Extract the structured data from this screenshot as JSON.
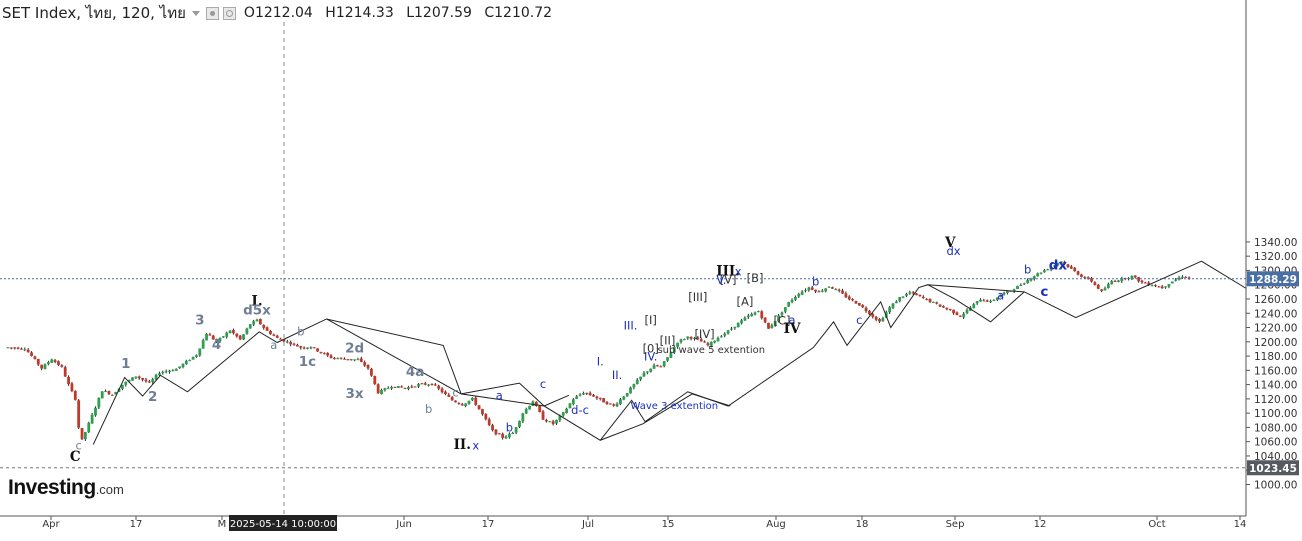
{
  "header": {
    "instrument": "SET Index, ไทย, 120, ไทย",
    "o_label": "O",
    "o_value": "1212.04",
    "h_label": "H",
    "h_value": "1214.33",
    "l_label": "L",
    "l_value": "1207.59",
    "c_label": "C",
    "c_value": "1210.72"
  },
  "logo": {
    "main": "Investing",
    "suffix": ".com"
  },
  "icons": {
    "settings": "gear-icon",
    "visibility": "eye-icon",
    "dropdown": "caret-down-icon"
  },
  "colors": {
    "up": "#2e9e4f",
    "down": "#c0392b",
    "wave_dark": "#111111",
    "wave_slate": "#6e7f95",
    "wave_blue": "#1c2fc0",
    "price_line": "#4a6fa5"
  },
  "chart_data": {
    "type": "candlestick",
    "title": "",
    "price_axis": {
      "min": 990,
      "max": 1340,
      "ticks": [
        1000,
        1020,
        1040,
        1060,
        1080,
        1100,
        1120,
        1140,
        1160,
        1180,
        1200,
        1220,
        1240,
        1260,
        1280,
        1300,
        1320,
        1340
      ],
      "tick_labels": [
        "1000.00",
        "1020.00",
        "1040.00",
        "1060.00",
        "1080.00",
        "1100.00",
        "1120.00",
        "1140.00",
        "1160.00",
        "1180.00",
        "1200.00",
        "1220.00",
        "1240.00",
        "1260.00",
        "1280.00",
        "1300.00",
        "1320.00",
        "1340.00"
      ],
      "position": "right"
    },
    "time_axis": {
      "labels": [
        "Apr",
        "17",
        "M",
        "Jun",
        "17",
        "Jul",
        "15",
        "Aug",
        "18",
        "Sep",
        "12",
        "Oct",
        "14"
      ],
      "crosshair_label": "2025-05-14 10:00:00"
    },
    "current_price": {
      "value": 1288.29,
      "label": "1288.29"
    },
    "horizontal_level": {
      "value": 1023.45,
      "label": "1023.45"
    },
    "grid": false,
    "price_path": [
      {
        "t": 0,
        "p": 1192
      },
      {
        "t": 2.5,
        "p": 1191
      },
      {
        "t": 3.5,
        "p": 1180
      },
      {
        "t": 5,
        "p": 1163
      },
      {
        "t": 6.5,
        "p": 1176
      },
      {
        "t": 8,
        "p": 1164
      },
      {
        "t": 9,
        "p": 1140
      },
      {
        "t": 10,
        "p": 1120
      },
      {
        "t": 10.5,
        "p": 1080
      },
      {
        "t": 11,
        "p": 1062
      },
      {
        "t": 12.5,
        "p": 1097
      },
      {
        "t": 14,
        "p": 1132
      },
      {
        "t": 15.5,
        "p": 1126
      },
      {
        "t": 17,
        "p": 1140
      },
      {
        "t": 19,
        "p": 1152
      },
      {
        "t": 21,
        "p": 1142
      },
      {
        "t": 22.5,
        "p": 1157
      },
      {
        "t": 25,
        "p": 1162
      },
      {
        "t": 28,
        "p": 1182
      },
      {
        "t": 29.5,
        "p": 1212
      },
      {
        "t": 31,
        "p": 1200
      },
      {
        "t": 33,
        "p": 1216
      },
      {
        "t": 34.5,
        "p": 1203
      },
      {
        "t": 36,
        "p": 1225
      },
      {
        "t": 37,
        "p": 1230
      },
      {
        "t": 38.5,
        "p": 1215
      },
      {
        "t": 40,
        "p": 1205
      },
      {
        "t": 42,
        "p": 1198
      },
      {
        "t": 43.5,
        "p": 1192
      },
      {
        "t": 45,
        "p": 1193
      },
      {
        "t": 46.5,
        "p": 1185
      },
      {
        "t": 48,
        "p": 1178
      },
      {
        "t": 50,
        "p": 1176
      },
      {
        "t": 52,
        "p": 1175
      },
      {
        "t": 53.5,
        "p": 1163
      },
      {
        "t": 55,
        "p": 1129
      },
      {
        "t": 57,
        "p": 1138
      },
      {
        "t": 59,
        "p": 1135
      },
      {
        "t": 61,
        "p": 1140
      },
      {
        "t": 63,
        "p": 1141
      },
      {
        "t": 64.5,
        "p": 1130
      },
      {
        "t": 66,
        "p": 1118
      },
      {
        "t": 67.5,
        "p": 1112
      },
      {
        "t": 69,
        "p": 1120
      },
      {
        "t": 70.5,
        "p": 1098
      },
      {
        "t": 72,
        "p": 1075
      },
      {
        "t": 73.5,
        "p": 1066
      },
      {
        "t": 75,
        "p": 1072
      },
      {
        "t": 76.5,
        "p": 1100
      },
      {
        "t": 78,
        "p": 1117
      },
      {
        "t": 79.5,
        "p": 1092
      },
      {
        "t": 81,
        "p": 1085
      },
      {
        "t": 82.5,
        "p": 1100
      },
      {
        "t": 84,
        "p": 1120
      },
      {
        "t": 85.5,
        "p": 1129
      },
      {
        "t": 87,
        "p": 1124
      },
      {
        "t": 88.5,
        "p": 1116
      },
      {
        "t": 90,
        "p": 1110
      },
      {
        "t": 91.5,
        "p": 1124
      },
      {
        "t": 93,
        "p": 1140
      },
      {
        "t": 94.5,
        "p": 1156
      },
      {
        "t": 96,
        "p": 1166
      },
      {
        "t": 97,
        "p": 1165
      },
      {
        "t": 98,
        "p": 1178
      },
      {
        "t": 99.5,
        "p": 1200
      },
      {
        "t": 101,
        "p": 1207
      },
      {
        "t": 102.5,
        "p": 1203
      },
      {
        "t": 104,
        "p": 1195
      },
      {
        "t": 105.5,
        "p": 1206
      },
      {
        "t": 107,
        "p": 1215
      },
      {
        "t": 108.5,
        "p": 1226
      },
      {
        "t": 110,
        "p": 1236
      },
      {
        "t": 111.5,
        "p": 1243
      },
      {
        "t": 113,
        "p": 1218
      },
      {
        "t": 114.5,
        "p": 1236
      },
      {
        "t": 116,
        "p": 1255
      },
      {
        "t": 117.5,
        "p": 1268
      },
      {
        "t": 119,
        "p": 1276
      },
      {
        "t": 120.5,
        "p": 1270
      },
      {
        "t": 122,
        "p": 1278
      },
      {
        "t": 123.5,
        "p": 1270
      },
      {
        "t": 125,
        "p": 1260
      },
      {
        "t": 126.5,
        "p": 1252
      },
      {
        "t": 128,
        "p": 1240
      },
      {
        "t": 129.5,
        "p": 1228
      },
      {
        "t": 131,
        "p": 1248
      },
      {
        "t": 132.5,
        "p": 1262
      },
      {
        "t": 134,
        "p": 1269
      },
      {
        "t": 135.5,
        "p": 1263
      },
      {
        "t": 137,
        "p": 1257
      },
      {
        "t": 138.5,
        "p": 1250
      },
      {
        "t": 140,
        "p": 1244
      },
      {
        "t": 141.5,
        "p": 1236
      },
      {
        "t": 143,
        "p": 1248
      },
      {
        "t": 144.5,
        "p": 1260
      },
      {
        "t": 146,
        "p": 1256
      },
      {
        "t": 147.5,
        "p": 1266
      },
      {
        "t": 149,
        "p": 1272
      },
      {
        "t": 150.5,
        "p": 1280
      },
      {
        "t": 152,
        "p": 1290
      },
      {
        "t": 153.5,
        "p": 1298
      },
      {
        "t": 155,
        "p": 1305
      },
      {
        "t": 156.5,
        "p": 1313
      },
      {
        "t": 158,
        "p": 1302
      },
      {
        "t": 159.5,
        "p": 1292
      },
      {
        "t": 161,
        "p": 1285
      },
      {
        "t": 162.5,
        "p": 1270
      },
      {
        "t": 164,
        "p": 1285
      },
      {
        "t": 165.5,
        "p": 1288
      },
      {
        "t": 167,
        "p": 1292
      },
      {
        "t": 168.5,
        "p": 1283
      },
      {
        "t": 170,
        "p": 1280
      },
      {
        "t": 171.5,
        "p": 1276
      },
      {
        "t": 173,
        "p": 1285
      },
      {
        "t": 174.5,
        "p": 1292
      },
      {
        "t": 175.5,
        "p": 1289
      }
    ],
    "wave_lines": [
      {
        "color": "#222222",
        "points": [
          [
            1076,
            1056
          ],
          [
            1104,
            1150
          ],
          [
            1120,
            1124
          ],
          [
            1136,
            1153
          ],
          [
            1160,
            1130
          ],
          [
            1224,
            1214
          ],
          [
            1240,
            1199
          ],
          [
            1284,
            1232
          ],
          [
            1388,
            1195
          ],
          [
            1404,
            1127
          ],
          [
            1478,
            1110
          ],
          [
            1528,
            1062
          ],
          [
            1566,
            1085
          ],
          [
            1610,
            1127
          ],
          [
            1644,
            1110
          ]
        ]
      },
      {
        "color": "#222222",
        "points": [
          [
            1284,
            1232
          ],
          [
            1404,
            1127
          ]
        ]
      },
      {
        "color": "#222222",
        "points": [
          [
            1404,
            1127
          ],
          [
            1456,
            1142
          ],
          [
            1478,
            1110
          ],
          [
            1500,
            1125
          ]
        ]
      },
      {
        "color": "#222222",
        "points": [
          [
            1528,
            1062
          ],
          [
            1556,
            1118
          ],
          [
            1568,
            1088
          ],
          [
            1606,
            1130
          ],
          [
            1642,
            1110
          ],
          [
            1718,
            1192
          ],
          [
            1736,
            1228
          ],
          [
            1748,
            1195
          ],
          [
            1778,
            1256
          ],
          [
            1787,
            1220
          ],
          [
            1812,
            1276
          ],
          [
            1820,
            1280
          ],
          [
            1844,
            1260
          ],
          [
            1876,
            1228
          ],
          [
            1906,
            1270
          ],
          [
            1952,
            1234
          ],
          [
            2064,
            1313
          ]
        ]
      },
      {
        "color": "#222222",
        "points": [
          [
            1820,
            1280
          ],
          [
            1906,
            1270
          ]
        ]
      },
      {
        "color": "#222222",
        "points": [
          [
            2064,
            1313
          ],
          [
            2112,
            1267
          ]
        ]
      },
      {
        "color": "#4aa3c7",
        "points": [
          [
            2112,
            1267
          ],
          [
            2138,
            1289
          ],
          [
            2158,
            1280
          ],
          [
            2174,
            1290
          ]
        ]
      }
    ],
    "annotations": [
      {
        "text": "I.",
        "t": 37,
        "p": 1251,
        "color": "#111111",
        "bold": true
      },
      {
        "text": "d5x",
        "t": 37,
        "p": 1238,
        "color": "#6e7f95",
        "bold": true
      },
      {
        "text": "3",
        "t": 28.5,
        "p": 1224,
        "color": "#6e7f95",
        "bold": true
      },
      {
        "text": "4",
        "t": 31,
        "p": 1190,
        "color": "#6e7f95",
        "bold": true
      },
      {
        "text": "1",
        "t": 17.5,
        "p": 1163,
        "color": "#6e7f95",
        "bold": true
      },
      {
        "text": "2",
        "t": 21.5,
        "p": 1117,
        "color": "#6e7f95",
        "bold": true
      },
      {
        "text": "c",
        "t": 10.5,
        "p": 1049,
        "color": "#6e7f95",
        "bold": false
      },
      {
        "text": "C",
        "t": 10,
        "p": 1033,
        "color": "#111111",
        "bold": true
      },
      {
        "text": "b",
        "t": 43.5,
        "p": 1209,
        "color": "#6e7f95",
        "bold": false
      },
      {
        "text": "a",
        "t": 39.5,
        "p": 1190,
        "color": "#6e7f95",
        "bold": false
      },
      {
        "text": "2d",
        "t": 51.5,
        "p": 1185,
        "color": "#6e7f95",
        "bold": true
      },
      {
        "text": "1c",
        "t": 44.5,
        "p": 1166,
        "color": "#6e7f95",
        "bold": true
      },
      {
        "text": "3x",
        "t": 51.5,
        "p": 1121,
        "color": "#6e7f95",
        "bold": true
      },
      {
        "text": "4a",
        "t": 60.5,
        "p": 1152,
        "color": "#6e7f95",
        "bold": true
      },
      {
        "text": "c",
        "t": 66.5,
        "p": 1123,
        "color": "#6e7f95",
        "bold": false
      },
      {
        "text": "b",
        "t": 62.5,
        "p": 1100,
        "color": "#6e7f95",
        "bold": false
      },
      {
        "text": "II.",
        "t": 67.5,
        "p": 1050,
        "color": "#111111",
        "bold": true
      },
      {
        "text": "x",
        "t": 69.5,
        "p": 1049,
        "color": "#1c2fc0",
        "bold": false
      },
      {
        "text": "a",
        "t": 73,
        "p": 1119,
        "color": "#1c2fc0",
        "bold": false
      },
      {
        "text": "b",
        "t": 74.5,
        "p": 1074,
        "color": "#1c2fc0",
        "bold": false
      },
      {
        "text": "c",
        "t": 79.5,
        "p": 1135,
        "color": "#1c2fc0",
        "bold": false
      },
      {
        "text": "d-c",
        "t": 85,
        "p": 1099,
        "color": "#1c2fc0",
        "bold": false
      },
      {
        "text": "Wave 3 extention",
        "t": 92.5,
        "p": 1106,
        "color": "#1c2fc0",
        "bold": false,
        "anchor": "start"
      },
      {
        "text": "I.",
        "t": 88,
        "p": 1167,
        "color": "#1c2fc0",
        "bold": false
      },
      {
        "text": "II.",
        "t": 90.5,
        "p": 1148,
        "color": "#1c2fc0",
        "bold": false
      },
      {
        "text": "III.",
        "t": 92.5,
        "p": 1217,
        "color": "#1c2fc0",
        "bold": false
      },
      {
        "text": "IV.",
        "t": 95.5,
        "p": 1174,
        "color": "#1c2fc0",
        "bold": false
      },
      {
        "text": "[I]",
        "t": 95.5,
        "p": 1225,
        "color": "#333333",
        "bold": false
      },
      {
        "text": "[II]",
        "t": 98,
        "p": 1196,
        "color": "#333333",
        "bold": false
      },
      {
        "text": "[0]",
        "t": 95.5,
        "p": 1185,
        "color": "#333333",
        "bold": false
      },
      {
        "text": "sub wave 5 extention",
        "t": 96.5,
        "p": 1184,
        "color": "#333333",
        "bold": false,
        "anchor": "start"
      },
      {
        "text": "[III]",
        "t": 102.5,
        "p": 1257,
        "color": "#333333",
        "bold": false
      },
      {
        "text": "[IV]",
        "t": 103.5,
        "p": 1205,
        "color": "#333333",
        "bold": false
      },
      {
        "text": "[V]",
        "t": 107,
        "p": 1282,
        "color": "#333333",
        "bold": false
      },
      {
        "text": "V.",
        "t": 106,
        "p": 1281,
        "color": "#1c2fc0",
        "bold": false
      },
      {
        "text": "III.",
        "t": 107,
        "p": 1293,
        "color": "#111111",
        "bold": true
      },
      {
        "text": "x",
        "t": 108.5,
        "p": 1293,
        "color": "#1c2fc0",
        "bold": false
      },
      {
        "text": "[B]",
        "t": 111,
        "p": 1284,
        "color": "#333333",
        "bold": false
      },
      {
        "text": "[A]",
        "t": 109.5,
        "p": 1251,
        "color": "#333333",
        "bold": false
      },
      {
        "text": "b",
        "t": 120,
        "p": 1279,
        "color": "#1c2fc0",
        "bold": false
      },
      {
        "text": "[C]",
        "t": 115,
        "p": 1224,
        "color": "#333333",
        "bold": false
      },
      {
        "text": "a",
        "t": 116.5,
        "p": 1225,
        "color": "#1c2fc0",
        "bold": false
      },
      {
        "text": "IV",
        "t": 116.5,
        "p": 1212,
        "color": "#111111",
        "bold": true
      },
      {
        "text": "c",
        "t": 126.5,
        "p": 1225,
        "color": "#1c2fc0",
        "bold": false
      },
      {
        "text": "V",
        "t": 140,
        "p": 1333,
        "color": "#111111",
        "bold": true
      },
      {
        "text": "dx",
        "t": 140.5,
        "p": 1322,
        "color": "#1c2fc0",
        "bold": false
      },
      {
        "text": "a",
        "t": 147.5,
        "p": 1259,
        "color": "#1c2fc0",
        "bold": false
      },
      {
        "text": "b",
        "t": 151.5,
        "p": 1296,
        "color": "#1c2fc0",
        "bold": false
      },
      {
        "text": "c",
        "t": 154,
        "p": 1264,
        "color": "#1c2fc0",
        "bold": true
      },
      {
        "text": "dx",
        "t": 156,
        "p": 1301,
        "color": "#1c2fc0",
        "bold": true
      }
    ]
  }
}
